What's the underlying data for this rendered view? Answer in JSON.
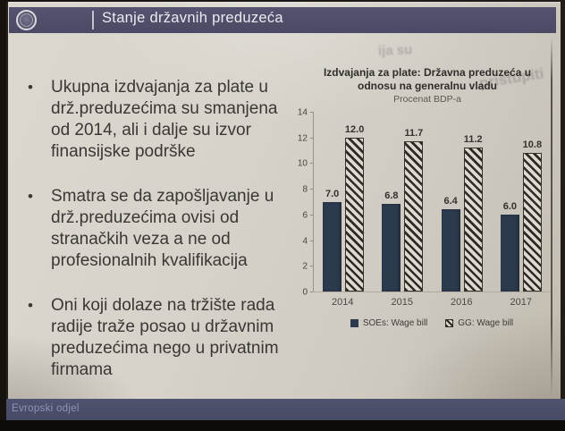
{
  "header": {
    "title": "Stanje državnih preduzeća",
    "logo": "imf-seal"
  },
  "bullets": [
    "Ukupna izdvajanja za plate u drž.preduzećima su smanjena od 2014, ali i dalje su izvor finansijske podrške",
    "Smatra se da zapošljavanje u drž.preduzećima ovisi od stranačkih veza a ne od profesionalnih kvalifikacija",
    "Oni koji dolaze na tržište rada radije traže posao u državnim preduzećima nego u privatnim firmama"
  ],
  "bullet_glyph": "•",
  "chart_data": {
    "type": "bar",
    "title": "Izdvajanja za plate: Državna preduzeća u odnosu na generalnu vladu",
    "subtitle": "Procenat BDP-a",
    "categories": [
      "2014",
      "2015",
      "2016",
      "2017"
    ],
    "series": [
      {
        "name": "SOEs: Wage bill",
        "style": "solid",
        "values": [
          7.0,
          6.8,
          6.4,
          6.0
        ]
      },
      {
        "name": "GG: Wage bill",
        "style": "hatched",
        "values": [
          12.0,
          11.7,
          11.2,
          10.8
        ]
      }
    ],
    "ylim": [
      0,
      14
    ],
    "yticks": [
      0,
      2,
      4,
      6,
      8,
      10,
      12,
      14
    ],
    "grid": false,
    "legend_position": "bottom",
    "value_labels": true
  },
  "footer": {
    "label": "Evropski odjel"
  },
  "artifacts": {
    "bleed_through_1": "ija su",
    "bleed_through_2": "pristupiti"
  },
  "colors": {
    "header_bar": "#514f6b",
    "footer_bar": "#4b4e6a",
    "soe_bar": "#2c3a4e",
    "paper": "#d6d2c9",
    "body_text": "#3a3835"
  }
}
